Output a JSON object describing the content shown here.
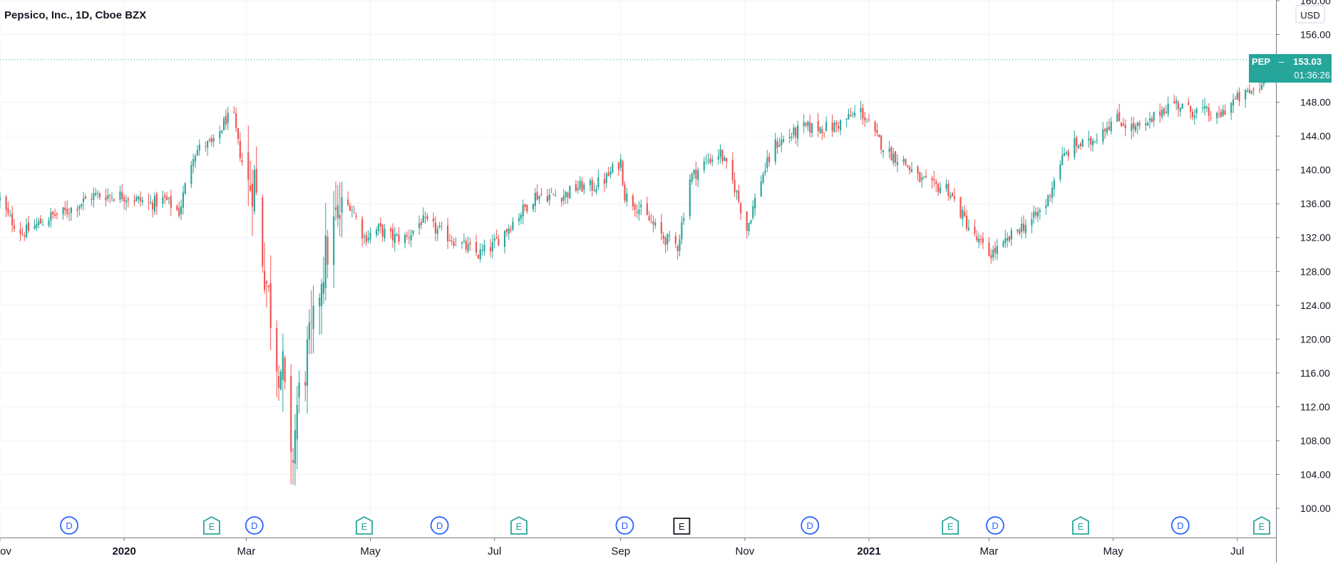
{
  "header": {
    "title": "Pepsico, Inc., 1D, Cboe BZX"
  },
  "price_scale": {
    "currency": "USD",
    "ticks": [
      "160.00",
      "156.00",
      "148.00",
      "144.00",
      "140.00",
      "136.00",
      "132.00",
      "128.00",
      "124.00",
      "120.00",
      "116.00",
      "112.00",
      "108.00",
      "104.00",
      "100.00"
    ]
  },
  "last_price": {
    "symbol": "PEP",
    "price": "153.03",
    "countdown": "01:36:26"
  },
  "time_axis": {
    "labels": [
      "ov",
      "2020",
      "Mar",
      "May",
      "Jul",
      "Sep",
      "Nov",
      "2021",
      "Mar",
      "May",
      "Jul"
    ],
    "bold": [
      false,
      true,
      false,
      false,
      false,
      false,
      false,
      true,
      false,
      false,
      false
    ]
  },
  "events": [
    {
      "type": "D",
      "date": "2019-12-05"
    },
    {
      "type": "E",
      "date": "2020-02-13"
    },
    {
      "type": "D",
      "date": "2020-03-05"
    },
    {
      "type": "E",
      "date": "2020-04-28"
    },
    {
      "type": "D",
      "date": "2020-06-04"
    },
    {
      "type": "E",
      "date": "2020-07-13"
    },
    {
      "type": "D",
      "date": "2020-09-03"
    },
    {
      "type": "E",
      "date": "2020-10-01",
      "future": true
    },
    {
      "type": "D",
      "date": "2020-12-03"
    },
    {
      "type": "E",
      "date": "2021-02-10"
    },
    {
      "type": "D",
      "date": "2021-03-04"
    },
    {
      "type": "E",
      "date": "2021-04-15"
    },
    {
      "type": "D",
      "date": "2021-06-03"
    },
    {
      "type": "E",
      "date": "2021-07-13"
    }
  ],
  "colors": {
    "up": "#26a69a",
    "down": "#ef5350",
    "grid": "#f0f3fa",
    "axis_text": "#131722",
    "dividend": "#2962ff",
    "earnings": "#26a69a",
    "earnings_future": "#131722",
    "last_line": "#26a69a"
  },
  "chart_data": {
    "type": "candlestick",
    "title": "Pepsico, Inc., 1D, Cboe BZX",
    "symbol": "PEP",
    "ylim": [
      99,
      160
    ],
    "xlim": [
      "2019-11-01",
      "2021-07-20"
    ],
    "grid": true,
    "close_path": [
      [
        "2019-11-01",
        136.5
      ],
      [
        "2019-11-05",
        134.5
      ],
      [
        "2019-11-12",
        132.5
      ],
      [
        "2019-11-19",
        133.5
      ],
      [
        "2019-11-26",
        134.5
      ],
      [
        "2019-12-03",
        135.0
      ],
      [
        "2019-12-10",
        136.0
      ],
      [
        "2019-12-17",
        137.0
      ],
      [
        "2019-12-24",
        137.0
      ],
      [
        "2019-12-31",
        137.0
      ],
      [
        "2020-01-07",
        136.5
      ],
      [
        "2020-01-14",
        136.0
      ],
      [
        "2020-01-21",
        136.5
      ],
      [
        "2020-01-28",
        135.0
      ],
      [
        "2020-02-04",
        142.0
      ],
      [
        "2020-02-10",
        143.0
      ],
      [
        "2020-02-14",
        143.0
      ],
      [
        "2020-02-20",
        146.0
      ],
      [
        "2020-02-24",
        146.0
      ],
      [
        "2020-02-26",
        143.0
      ],
      [
        "2020-03-02",
        138.0
      ],
      [
        "2020-03-05",
        139.0
      ],
      [
        "2020-03-09",
        130.0
      ],
      [
        "2020-03-12",
        125.0
      ],
      [
        "2020-03-16",
        118.0
      ],
      [
        "2020-03-19",
        116.0
      ],
      [
        "2020-03-23",
        104.0
      ],
      [
        "2020-03-26",
        112.0
      ],
      [
        "2020-03-31",
        118.0
      ],
      [
        "2020-04-03",
        121.0
      ],
      [
        "2020-04-07",
        128.0
      ],
      [
        "2020-04-14",
        134.0
      ],
      [
        "2020-04-21",
        136.0
      ],
      [
        "2020-04-28",
        132.0
      ],
      [
        "2020-05-05",
        133.0
      ],
      [
        "2020-05-12",
        132.0
      ],
      [
        "2020-05-19",
        132.0
      ],
      [
        "2020-05-26",
        134.0
      ],
      [
        "2020-06-02",
        133.0
      ],
      [
        "2020-06-09",
        132.0
      ],
      [
        "2020-06-16",
        131.0
      ],
      [
        "2020-06-23",
        130.0
      ],
      [
        "2020-06-30",
        131.0
      ],
      [
        "2020-07-07",
        133.0
      ],
      [
        "2020-07-14",
        135.0
      ],
      [
        "2020-07-21",
        137.0
      ],
      [
        "2020-07-28",
        137.0
      ],
      [
        "2020-08-04",
        137.0
      ],
      [
        "2020-08-11",
        138.0
      ],
      [
        "2020-08-18",
        138.0
      ],
      [
        "2020-08-25",
        139.0
      ],
      [
        "2020-08-28",
        140.0
      ],
      [
        "2020-09-01",
        141.0
      ],
      [
        "2020-09-03",
        137.0
      ],
      [
        "2020-09-08",
        136.0
      ],
      [
        "2020-09-15",
        134.0
      ],
      [
        "2020-09-22",
        132.0
      ],
      [
        "2020-09-29",
        131.0
      ],
      [
        "2020-10-05",
        139.0
      ],
      [
        "2020-10-09",
        140.0
      ],
      [
        "2020-10-13",
        141.0
      ],
      [
        "2020-10-20",
        142.0
      ],
      [
        "2020-10-27",
        138.0
      ],
      [
        "2020-11-02",
        133.0
      ],
      [
        "2020-11-09",
        139.0
      ],
      [
        "2020-11-16",
        143.0
      ],
      [
        "2020-11-23",
        144.0
      ],
      [
        "2020-11-30",
        145.0
      ],
      [
        "2020-12-07",
        145.0
      ],
      [
        "2020-12-14",
        145.0
      ],
      [
        "2020-12-21",
        146.0
      ],
      [
        "2020-12-28",
        147.0
      ],
      [
        "2021-01-04",
        144.0
      ],
      [
        "2021-01-11",
        142.0
      ],
      [
        "2021-01-18",
        141.0
      ],
      [
        "2021-01-25",
        139.0
      ],
      [
        "2021-02-01",
        138.0
      ],
      [
        "2021-02-08",
        138.0
      ],
      [
        "2021-02-15",
        135.0
      ],
      [
        "2021-02-22",
        132.0
      ],
      [
        "2021-03-01",
        130.0
      ],
      [
        "2021-03-08",
        131.0
      ],
      [
        "2021-03-15",
        133.0
      ],
      [
        "2021-03-22",
        134.0
      ],
      [
        "2021-03-29",
        136.0
      ],
      [
        "2021-04-05",
        141.0
      ],
      [
        "2021-04-12",
        143.0
      ],
      [
        "2021-04-19",
        143.0
      ],
      [
        "2021-04-26",
        145.0
      ],
      [
        "2021-05-03",
        146.0
      ],
      [
        "2021-05-10",
        145.0
      ],
      [
        "2021-05-17",
        145.0
      ],
      [
        "2021-05-24",
        147.0
      ],
      [
        "2021-05-31",
        148.0
      ],
      [
        "2021-06-07",
        147.0
      ],
      [
        "2021-06-14",
        147.0
      ],
      [
        "2021-06-21",
        146.0
      ],
      [
        "2021-06-28",
        148.0
      ],
      [
        "2021-07-06",
        149.0
      ],
      [
        "2021-07-13",
        150.0
      ],
      [
        "2021-07-15",
        153.03
      ]
    ],
    "last_close": 153.03
  }
}
